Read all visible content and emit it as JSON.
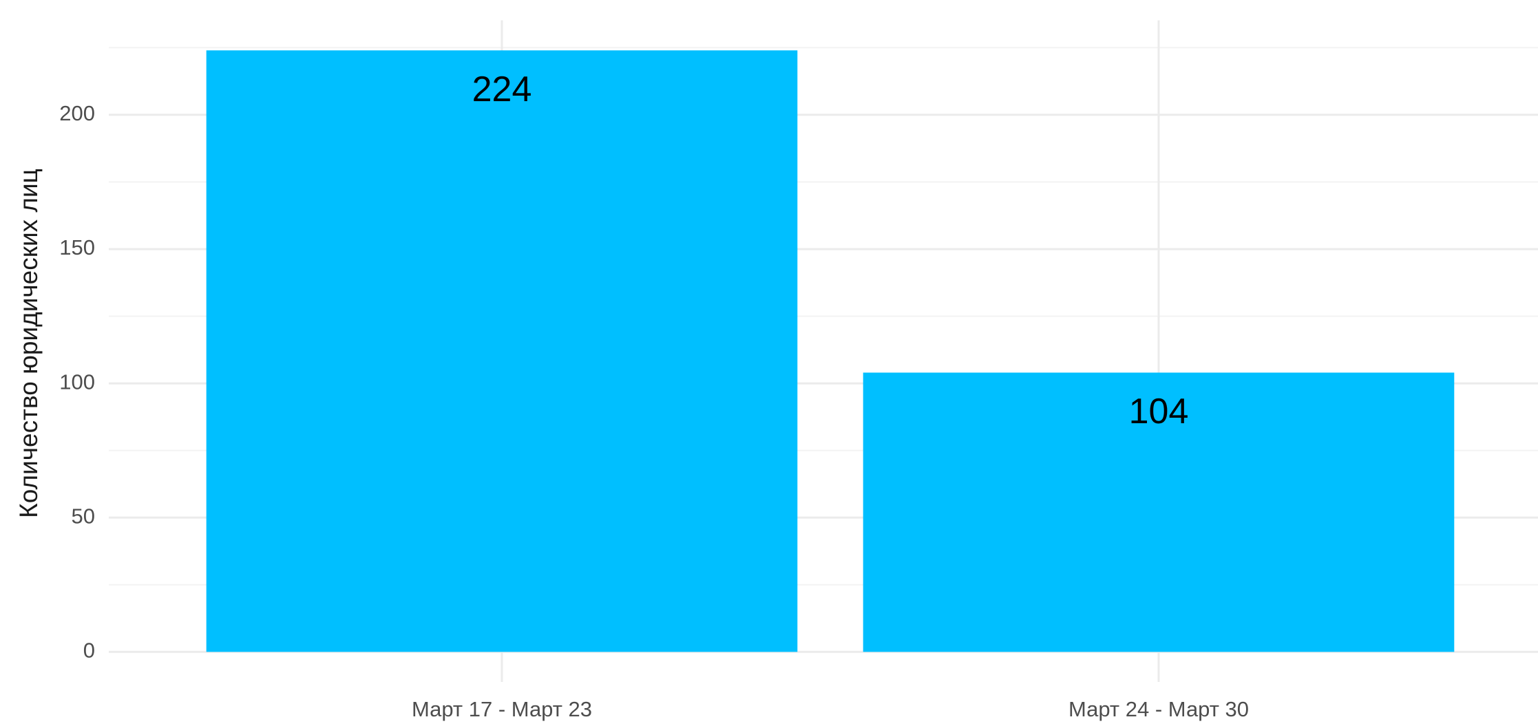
{
  "chart_data": {
    "type": "bar",
    "y_label": "Количество юридических лиц",
    "categories": [
      "Март 17 - Март 23",
      "Март 24 - Март 30"
    ],
    "values": [
      224,
      104
    ],
    "color": "#00bfff",
    "ylim": [
      -11.2,
      235.2
    ],
    "yticks": [
      0,
      50,
      100,
      150,
      200
    ],
    "yticks_minor": [
      25,
      75,
      125,
      175,
      225
    ],
    "grid": true
  }
}
